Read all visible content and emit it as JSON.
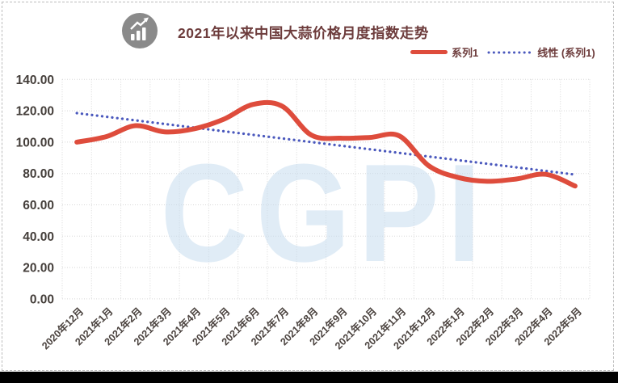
{
  "frame": {
    "background": "#ffffff",
    "border_color": "#bdbdbd",
    "bottom_bar_color": "#000000"
  },
  "header": {
    "title": "2021年以来中国大蒜价格月度指数走势",
    "title_color": "#6d3c3c",
    "icon": "trend-chart-icon"
  },
  "legend": {
    "items": [
      {
        "label": "系列1",
        "style": "solid",
        "color": "#de4c3c"
      },
      {
        "label": "线性 (系列1)",
        "style": "dotted",
        "color": "#4a58bd"
      }
    ]
  },
  "watermark": {
    "text": "CGPI",
    "color": "#c8ddef"
  },
  "chart_data": {
    "type": "line",
    "title": "2021年以来中国大蒜价格月度指数走势",
    "categories": [
      "2020年12月",
      "2021年1月",
      "2021年2月",
      "2021年3月",
      "2021年4月",
      "2021年5月",
      "2021年6月",
      "2021年7月",
      "2021年8月",
      "2021年9月",
      "2021年10月",
      "2021年11月",
      "2021年12月",
      "2022年1月",
      "2022年2月",
      "2022年3月",
      "2022年4月",
      "2022年5月"
    ],
    "series": [
      {
        "name": "系列1",
        "type": "smooth-line",
        "color": "#de4c3c",
        "values": [
          100.0,
          103.5,
          110.5,
          106.5,
          108.5,
          114.5,
          124.0,
          123.0,
          104.5,
          102.5,
          103.0,
          104.0,
          85.0,
          77.5,
          75.0,
          76.5,
          79.5,
          72.0
        ]
      },
      {
        "name": "线性 (系列1)",
        "type": "linear-trend",
        "color": "#4a58bd",
        "start_value": 118.5,
        "end_value": 79.3
      }
    ],
    "ylim": [
      0,
      140
    ],
    "ytick_values": [
      140,
      120,
      100,
      80,
      60,
      40,
      20,
      0
    ],
    "ytick_labels": [
      "140.00",
      "120.00",
      "100.00",
      "80.00",
      "60.00",
      "40.00",
      "20.00",
      "0.00"
    ],
    "grid": true,
    "legend_position": "top-right",
    "x_label_rotation": -45
  }
}
